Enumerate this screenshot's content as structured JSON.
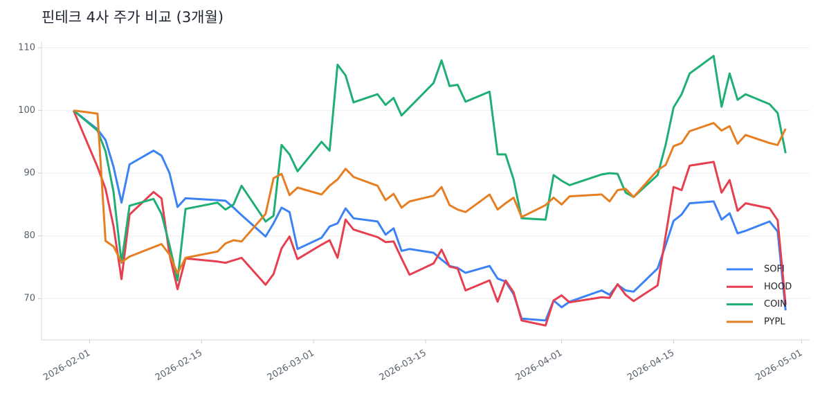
{
  "chart_data": {
    "type": "line",
    "title": "핀테크 4사 주가 비교 (3개월)",
    "x": [
      "2026-01-30",
      "2026-02-02",
      "2026-02-03",
      "2026-02-04",
      "2026-02-05",
      "2026-02-06",
      "2026-02-09",
      "2026-02-10",
      "2026-02-11",
      "2026-02-12",
      "2026-02-13",
      "2026-02-17",
      "2026-02-18",
      "2026-02-19",
      "2026-02-20",
      "2026-02-23",
      "2026-02-24",
      "2026-02-25",
      "2026-02-26",
      "2026-02-27",
      "2026-03-02",
      "2026-03-03",
      "2026-03-04",
      "2026-03-05",
      "2026-03-06",
      "2026-03-09",
      "2026-03-10",
      "2026-03-11",
      "2026-03-12",
      "2026-03-13",
      "2026-03-16",
      "2026-03-17",
      "2026-03-18",
      "2026-03-19",
      "2026-03-20",
      "2026-03-23",
      "2026-03-24",
      "2026-03-25",
      "2026-03-26",
      "2026-03-27",
      "2026-03-30",
      "2026-03-31",
      "2026-04-01",
      "2026-04-02",
      "2026-04-06",
      "2026-04-07",
      "2026-04-08",
      "2026-04-09",
      "2026-04-10",
      "2026-04-13",
      "2026-04-14",
      "2026-04-15",
      "2026-04-16",
      "2026-04-17",
      "2026-04-20",
      "2026-04-21",
      "2026-04-22",
      "2026-04-23",
      "2026-04-24",
      "2026-04-27",
      "2026-04-28",
      "2026-04-29"
    ],
    "series": [
      {
        "name": "SOFI",
        "color": "#3b82f6",
        "values": [
          100,
          97,
          95.3,
          91,
          85.3,
          91.4,
          93.6,
          92.8,
          90,
          84.6,
          86,
          85.7,
          85.6,
          84.5,
          83.3,
          79.9,
          82,
          84.5,
          83.8,
          77.9,
          79.7,
          81.5,
          82,
          84.4,
          82.8,
          82.3,
          80.2,
          81.2,
          77.6,
          77.9,
          77.3,
          76.2,
          75.2,
          74.9,
          74.1,
          75.2,
          73.2,
          72.7,
          70.7,
          66.8,
          66.5,
          69.7,
          68.6,
          69.5,
          71.3,
          70.6,
          72.2,
          71.3,
          71.1,
          74.8,
          78.5,
          82.4,
          83.4,
          85.2,
          85.5,
          82.6,
          83.6,
          80.4,
          80.8,
          82.3,
          80.7,
          68.1
        ]
      },
      {
        "name": "HOOD",
        "color": "#e63f4f",
        "values": [
          100,
          91,
          87.5,
          81.5,
          73.1,
          83.4,
          87,
          86,
          77,
          71.5,
          76.4,
          75.9,
          75.7,
          76.1,
          76.5,
          72.2,
          73.9,
          78,
          79.9,
          76.3,
          78.6,
          79.3,
          76.5,
          82.6,
          81,
          79.8,
          79,
          79.1,
          76.4,
          73.8,
          75.6,
          77.8,
          75.1,
          74.8,
          71.3,
          72.9,
          69.5,
          72.9,
          71,
          66.5,
          65.7,
          69.7,
          70.5,
          69.4,
          70.2,
          70.1,
          72.3,
          70.6,
          69.6,
          72.1,
          80,
          87.8,
          87.3,
          91.2,
          91.8,
          86.9,
          88.9,
          84,
          85.2,
          84.4,
          82.5,
          69
        ]
      },
      {
        "name": "COIN",
        "color": "#1fae74",
        "values": [
          100,
          96.8,
          93.5,
          87,
          75.7,
          84.8,
          85.9,
          83.5,
          78.5,
          72.9,
          84.3,
          85.3,
          84.2,
          85,
          88,
          82.3,
          83.2,
          94.5,
          93,
          90.3,
          95,
          93.6,
          107.3,
          105.6,
          101.3,
          102.6,
          100.9,
          102,
          99.2,
          100.5,
          104.4,
          108,
          103.9,
          104.1,
          101.4,
          103,
          93,
          93,
          89,
          82.8,
          82.6,
          89.7,
          88.8,
          88.1,
          89.8,
          90,
          89.9,
          86.9,
          86.2,
          89.7,
          94.5,
          100.5,
          102.6,
          105.9,
          108.7,
          100.6,
          105.9,
          101.7,
          102.6,
          101,
          99.6,
          93.2
        ]
      },
      {
        "name": "PYPL",
        "color": "#e67e22",
        "values": [
          100,
          99.5,
          79.2,
          78.3,
          75.8,
          76.7,
          78.2,
          78.7,
          77,
          74,
          76.5,
          77.5,
          78.8,
          79.3,
          79.1,
          83.5,
          89.2,
          89.9,
          86.5,
          87.7,
          86.6,
          88,
          89,
          90.7,
          89.4,
          88,
          85.7,
          86.7,
          84.5,
          85.5,
          86.4,
          87.8,
          84.9,
          84.2,
          83.8,
          86.6,
          84.2,
          85.2,
          86.1,
          83,
          84.9,
          86.1,
          85,
          86.3,
          86.6,
          85.5,
          87.3,
          87.5,
          86.2,
          90.5,
          91.3,
          94.3,
          94.8,
          96.7,
          98,
          96.8,
          97.5,
          94.7,
          96.1,
          94.8,
          94.5,
          97.1
        ]
      }
    ],
    "xlim": [
      "2026-01-26",
      "2026-05-02"
    ],
    "xticks": [
      "2026-02-01",
      "2026-02-15",
      "2026-03-01",
      "2026-03-15",
      "2026-04-01",
      "2026-04-15",
      "2026-05-01"
    ],
    "ylim": [
      63.4,
      111
    ],
    "yticks": [
      70,
      80,
      90,
      100,
      110
    ],
    "grid": true,
    "legend": "lower right"
  }
}
